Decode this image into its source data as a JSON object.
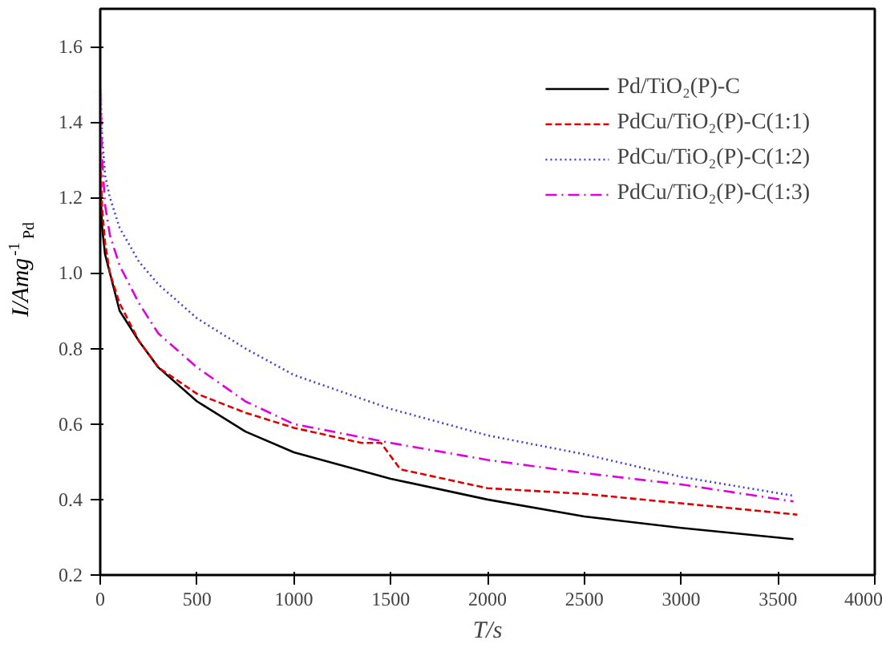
{
  "chart_data": {
    "type": "line",
    "xlabel": "T/s",
    "ylabel": "I/Amg$^{-1}$$_{Pd}$",
    "xlim": [
      0,
      4000
    ],
    "ylim": [
      0.2,
      1.7
    ],
    "xticks": [
      0,
      500,
      1000,
      1500,
      2000,
      2500,
      3000,
      3500,
      4000
    ],
    "yticks": [
      0.2,
      0.4,
      0.6,
      0.8,
      {
        "value": 1,
        "label": "1.0"
      },
      1.2,
      1.4,
      1.6
    ],
    "grid": false,
    "legend": "top right",
    "marker": "none",
    "series": [
      {
        "name": "Pd/TiO₂(P)-C",
        "color": "#000000",
        "line_style": "solid",
        "x": [
          0,
          10,
          25,
          50,
          100,
          200,
          300,
          500,
          750,
          1000,
          1500,
          2000,
          2500,
          3000,
          3580
        ],
        "values": [
          1.23,
          1.12,
          1.05,
          1.0,
          0.9,
          0.82,
          0.75,
          0.66,
          0.58,
          0.525,
          0.455,
          0.4,
          0.355,
          0.325,
          0.295
        ]
      },
      {
        "name": "PdCu/TiO₂(P)-C(1:1)",
        "color": "#e00000",
        "line_style": "dashed",
        "x": [
          0,
          10,
          25,
          50,
          100,
          200,
          300,
          500,
          750,
          1000,
          1350,
          1450,
          1550,
          2000,
          2500,
          3000,
          3600
        ],
        "values": [
          1.32,
          1.17,
          1.08,
          1.0,
          0.92,
          0.82,
          0.75,
          0.68,
          0.63,
          0.59,
          0.55,
          0.55,
          0.48,
          0.43,
          0.415,
          0.39,
          0.36
        ]
      },
      {
        "name": "PdCu/TiO₂(P)-C(1:2)",
        "color": "#4040e0",
        "line_style": "dotted",
        "x": [
          0,
          10,
          25,
          50,
          100,
          200,
          300,
          500,
          750,
          1000,
          1500,
          2000,
          2500,
          3000,
          3580
        ],
        "values": [
          1.5,
          1.36,
          1.26,
          1.2,
          1.12,
          1.03,
          0.97,
          0.88,
          0.8,
          0.73,
          0.64,
          0.57,
          0.52,
          0.46,
          0.41
        ]
      },
      {
        "name": "PdCu/TiO₂(P)-C(1:3)",
        "color": "#e000e0",
        "line_style": "dashdot",
        "x": [
          0,
          10,
          25,
          50,
          100,
          200,
          300,
          500,
          750,
          1000,
          1500,
          2000,
          2500,
          3000,
          3580
        ],
        "values": [
          1.48,
          1.3,
          1.18,
          1.1,
          1.02,
          0.92,
          0.84,
          0.75,
          0.66,
          0.6,
          0.55,
          0.505,
          0.47,
          0.44,
          0.395
        ]
      }
    ]
  }
}
